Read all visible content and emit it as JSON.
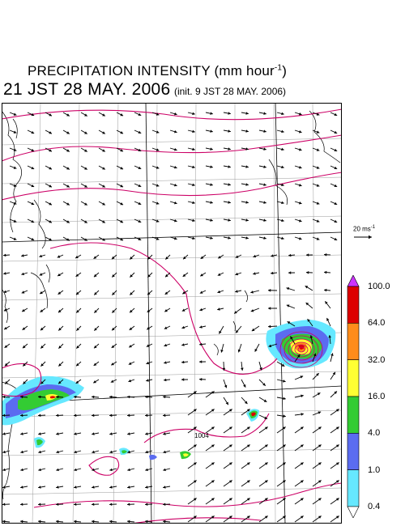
{
  "title": {
    "line1_main": "PRECIPITATION INTENSITY (mm hour",
    "line1_exp": "-1",
    "line1_close": ")",
    "line2_main": "21 JST 28 MAY. 2006",
    "line2_init": "(init. 9 JST 28 MAY. 2006)"
  },
  "wind_reference": {
    "label": "20 ms",
    "exp": "-1"
  },
  "legend": {
    "thresholds": [
      "100.0",
      "64.0",
      "32.0",
      "16.0",
      "4.0",
      "1.0",
      "0.4"
    ],
    "colors": [
      "#dd0000",
      "#ff8c1a",
      "#ffff33",
      "#33cc33",
      "#5b6cf0",
      "#66e8ff"
    ],
    "top_arrow_color": "#cc33ff",
    "bottom_arrow_color": "#ffffff"
  },
  "map": {
    "isobar_label": "1004",
    "isobar_color": "#cc0066"
  }
}
